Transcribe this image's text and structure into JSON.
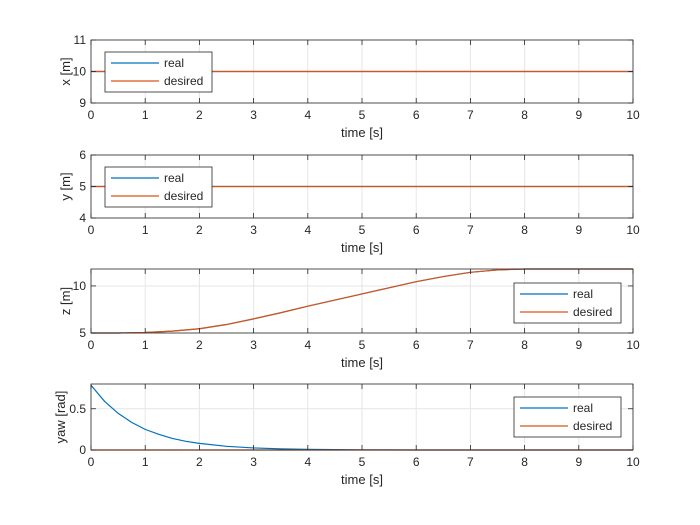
{
  "colors": {
    "real": "#0072BD",
    "desired": "#D95319",
    "axes": "#262626",
    "grid": "#e6e6e6",
    "background": "#ffffff"
  },
  "chart_data": [
    {
      "type": "line",
      "xlabel": "time [s]",
      "ylabel": "x [m]",
      "xlim": [
        0,
        10
      ],
      "ylim": [
        9,
        11
      ],
      "xticks": [
        "0",
        "1",
        "2",
        "3",
        "4",
        "5",
        "6",
        "7",
        "8",
        "9",
        "10"
      ],
      "yticks": [
        "9",
        "10",
        "11"
      ],
      "grid": true,
      "legend_location": "top-left",
      "series": [
        {
          "name": "real",
          "color": "#0072BD",
          "x": [
            0,
            10
          ],
          "y": [
            10,
            10
          ]
        },
        {
          "name": "desired",
          "color": "#D95319",
          "x": [
            0,
            10
          ],
          "y": [
            10,
            10
          ]
        }
      ]
    },
    {
      "type": "line",
      "xlabel": "time [s]",
      "ylabel": "y [m]",
      "xlim": [
        0,
        10
      ],
      "ylim": [
        4,
        6
      ],
      "xticks": [
        "0",
        "1",
        "2",
        "3",
        "4",
        "5",
        "6",
        "7",
        "8",
        "9",
        "10"
      ],
      "yticks": [
        "4",
        "5",
        "6"
      ],
      "grid": true,
      "legend_location": "top-left",
      "series": [
        {
          "name": "real",
          "color": "#0072BD",
          "x": [
            0,
            10
          ],
          "y": [
            5,
            5
          ]
        },
        {
          "name": "desired",
          "color": "#D95319",
          "x": [
            0,
            10
          ],
          "y": [
            5,
            5
          ]
        }
      ]
    },
    {
      "type": "line",
      "xlabel": "time [s]",
      "ylabel": "z [m]",
      "xlim": [
        0,
        10
      ],
      "ylim": [
        5,
        11.8
      ],
      "xticks": [
        "0",
        "1",
        "2",
        "3",
        "4",
        "5",
        "6",
        "7",
        "8",
        "9",
        "10"
      ],
      "yticks": [
        "5",
        "10"
      ],
      "grid": true,
      "legend_location": "middle-right",
      "series": [
        {
          "name": "real",
          "color": "#0072BD",
          "x": [
            0,
            0.5,
            1,
            1.5,
            2,
            2.5,
            3,
            3.5,
            4,
            4.5,
            5,
            5.5,
            6,
            6.5,
            7,
            7.5,
            8,
            9,
            10
          ],
          "y": [
            5.0,
            5.0,
            5.05,
            5.2,
            5.45,
            5.9,
            6.5,
            7.15,
            7.85,
            8.5,
            9.15,
            9.8,
            10.45,
            11.0,
            11.45,
            11.7,
            11.8,
            11.8,
            11.8
          ]
        },
        {
          "name": "desired",
          "color": "#D95319",
          "x": [
            0,
            0.5,
            1,
            1.5,
            2,
            2.5,
            3,
            3.5,
            4,
            4.5,
            5,
            5.5,
            6,
            6.5,
            7,
            7.5,
            8,
            9,
            10
          ],
          "y": [
            5.0,
            5.0,
            5.05,
            5.2,
            5.45,
            5.9,
            6.5,
            7.15,
            7.85,
            8.5,
            9.15,
            9.8,
            10.45,
            11.0,
            11.45,
            11.7,
            11.8,
            11.8,
            11.8
          ]
        }
      ]
    },
    {
      "type": "line",
      "xlabel": "time [s]",
      "ylabel": "yaw [rad]",
      "xlim": [
        0,
        10
      ],
      "ylim": [
        0,
        0.8
      ],
      "xticks": [
        "0",
        "1",
        "2",
        "3",
        "4",
        "5",
        "6",
        "7",
        "8",
        "9",
        "10"
      ],
      "yticks": [
        "0",
        "0.5"
      ],
      "grid": true,
      "legend_location": "middle-right",
      "series": [
        {
          "name": "real",
          "color": "#0072BD",
          "x": [
            0,
            0.25,
            0.5,
            0.75,
            1,
            1.25,
            1.5,
            1.75,
            2,
            2.5,
            3,
            3.5,
            4,
            5,
            6,
            7,
            8,
            9,
            10
          ],
          "y": [
            0.785,
            0.59,
            0.445,
            0.335,
            0.25,
            0.19,
            0.14,
            0.105,
            0.08,
            0.045,
            0.025,
            0.014,
            0.008,
            0.002,
            0.0,
            0.0,
            0.0,
            0.0,
            0.0
          ]
        },
        {
          "name": "desired",
          "color": "#D95319",
          "x": [
            0,
            10
          ],
          "y": [
            0,
            0
          ]
        }
      ]
    }
  ]
}
